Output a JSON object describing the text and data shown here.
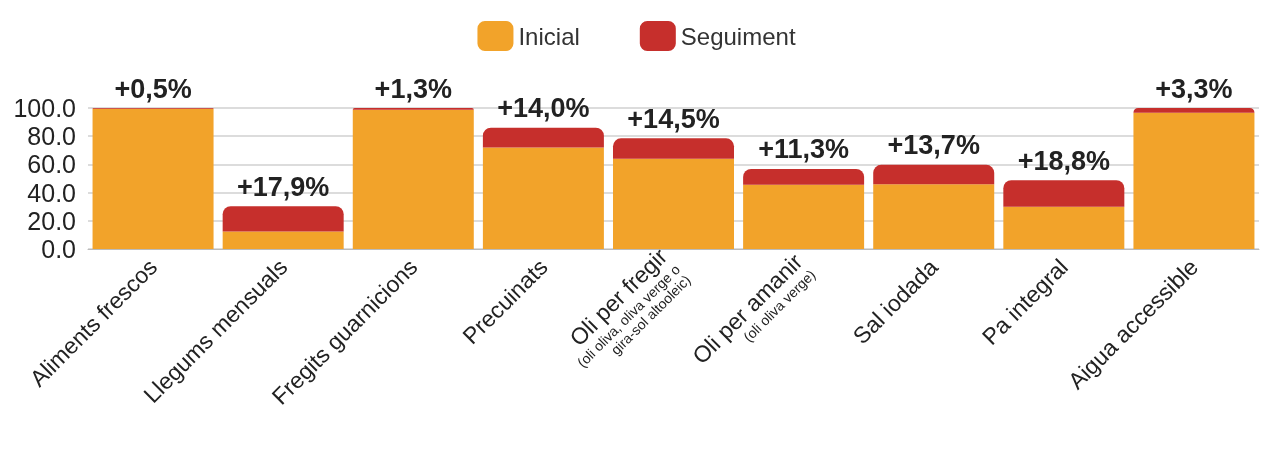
{
  "chart_data": {
    "type": "bar",
    "stacked": true,
    "legend": "top",
    "grid": "y",
    "categories": [
      "Aliments frescos",
      "Llegums mensuals",
      "Fregits guarnicions",
      "Precuinats",
      "Oli per fregir\n(oli oliva, oliva verge o\ngira-sol altooleic)",
      "Oli per amanir\n(oli oliva verge)",
      "Sal iodada",
      "Pa integral",
      "Aigua accessible"
    ],
    "series": [
      {
        "name": "Inicial",
        "color": "#f2a32a",
        "values": [
          99.5,
          12.5,
          98.7,
          72,
          64,
          45.5,
          46,
          30,
          96.7
        ]
      },
      {
        "name": "Seguiment",
        "color": "#c62f2c",
        "values": [
          0.5,
          17.9,
          1.3,
          14.0,
          14.5,
          11.3,
          13.7,
          18.8,
          3.3
        ],
        "value_labels": [
          "+0,5%",
          "+17,9%",
          "+1,3%",
          "+14,0%",
          "+14,5%",
          "+11,3%",
          "+13,7%",
          "+18,8%",
          "+3,3%"
        ]
      }
    ],
    "ylim": [
      0,
      100
    ],
    "yticks": [
      {
        "value": 0,
        "label": "0.0"
      },
      {
        "value": 20,
        "label": "20.0"
      },
      {
        "value": 40,
        "label": "40.0"
      },
      {
        "value": 60,
        "label": "60.0"
      },
      {
        "value": 80,
        "label": "80.0"
      },
      {
        "value": 100,
        "label": "100.0"
      }
    ]
  }
}
